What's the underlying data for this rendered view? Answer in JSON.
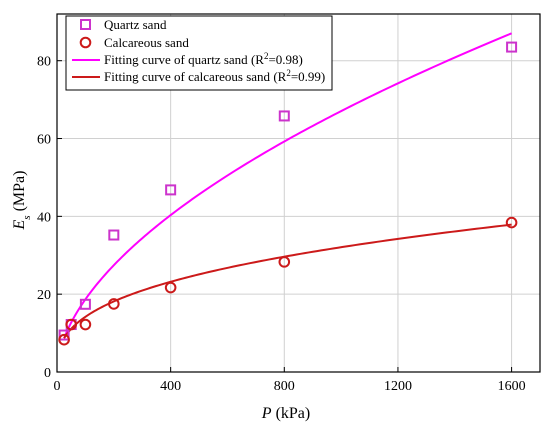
{
  "chart_data": {
    "type": "scatter",
    "title": "",
    "xlabel": {
      "symbol": "P",
      "unit": "(kPa)"
    },
    "ylabel": {
      "symbol": "E",
      "subscript": "s",
      "unit": "(MPa)"
    },
    "xlim": [
      0,
      1700
    ],
    "ylim": [
      0,
      92
    ],
    "xticks": [
      0,
      400,
      800,
      1200,
      1600
    ],
    "yticks": [
      0,
      20,
      40,
      60,
      80
    ],
    "grid": true,
    "legend_position": "top-left",
    "series": [
      {
        "name": "Quartz sand",
        "kind": "points",
        "marker": "square",
        "color": "#cc33cc",
        "x": [
          25,
          50,
          100,
          200,
          400,
          800,
          1600
        ],
        "y": [
          9.5,
          12.2,
          17.4,
          35.2,
          46.8,
          65.8,
          83.5
        ]
      },
      {
        "name": "Calcareous sand",
        "kind": "points",
        "marker": "circle",
        "color": "#cc1a1a",
        "x": [
          25,
          50,
          100,
          200,
          400,
          800,
          1600
        ],
        "y": [
          8.3,
          12.2,
          12.2,
          17.5,
          21.7,
          28.3,
          38.4
        ]
      },
      {
        "name": "Fitting curve of quartz sand",
        "r2_label": "R",
        "r2_sup": "2",
        "r2_value": "=0.98",
        "kind": "fit",
        "color": "#ff00ff",
        "model": "power",
        "coef": 1.45,
        "exponent": 0.555,
        "x_range": [
          25,
          1600
        ]
      },
      {
        "name": "Fitting curve of calcareous sand",
        "r2_label": "R",
        "r2_sup": "2",
        "r2_value": "=0.99",
        "kind": "fit",
        "color": "#cc1a1a",
        "model": "power",
        "coef": 2.78,
        "exponent": 0.354,
        "x_range": [
          25,
          1600
        ]
      }
    ]
  }
}
